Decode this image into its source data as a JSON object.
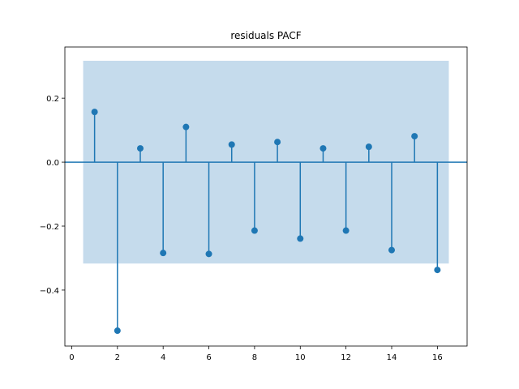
{
  "chart_data": {
    "type": "stem",
    "title": "residuals PACF",
    "xlabel": "",
    "ylabel": "",
    "xlim": [
      -0.3,
      17.3
    ],
    "ylim": [
      -0.575,
      0.36
    ],
    "xticks": [
      0,
      2,
      4,
      6,
      8,
      10,
      12,
      14,
      16
    ],
    "yticks": [
      -0.4,
      -0.2,
      0.0,
      0.2
    ],
    "ytick_labels": [
      "−0.4",
      "−0.2",
      "0.0",
      "0.2"
    ],
    "confidence_band": {
      "x_range": [
        0.5,
        16.5
      ],
      "lower": -0.317,
      "upper": 0.317,
      "color": "#c5dbec"
    },
    "series": [
      {
        "x": [
          1,
          2,
          3,
          4,
          5,
          6,
          7,
          8,
          9,
          10,
          11,
          12,
          13,
          14,
          15,
          16
        ],
        "values": [
          0.157,
          -0.527,
          0.043,
          -0.284,
          0.11,
          -0.287,
          0.055,
          -0.214,
          0.063,
          -0.239,
          0.043,
          -0.214,
          0.048,
          -0.275,
          0.081,
          -0.337
        ]
      }
    ],
    "line_color": "#1f77b4",
    "grid": false
  }
}
